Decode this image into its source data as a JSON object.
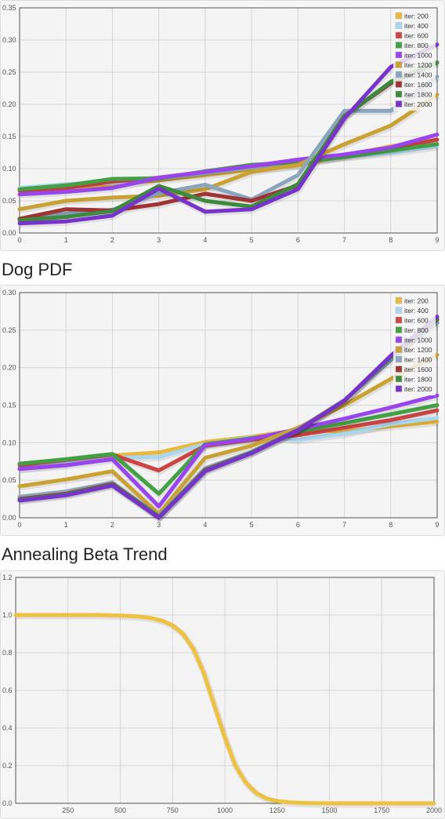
{
  "headings": {
    "dog_pdf": "Dog PDF",
    "annealing": "Annealing Beta Trend"
  },
  "chart_data": [
    {
      "type": "line",
      "title": "",
      "x": [
        0,
        1,
        2,
        3,
        4,
        5,
        6,
        7,
        8,
        9
      ],
      "ylim": [
        0,
        0.35
      ],
      "yticks": [
        0.0,
        0.05,
        0.1,
        0.15,
        0.2,
        0.25,
        0.3,
        0.35
      ],
      "grid": true,
      "legend": "top-right",
      "series": [
        {
          "name": "iter: 200",
          "color": "#e8b93c",
          "values": [
            0.065,
            0.07,
            0.075,
            0.082,
            0.09,
            0.098,
            0.105,
            0.12,
            0.135,
            0.145
          ]
        },
        {
          "name": "iter: 400",
          "color": "#a9d6f0",
          "values": [
            0.07,
            0.076,
            0.078,
            0.085,
            0.093,
            0.102,
            0.11,
            0.118,
            0.125,
            0.135
          ]
        },
        {
          "name": "iter: 600",
          "color": "#cc4444",
          "values": [
            0.066,
            0.07,
            0.08,
            0.086,
            0.095,
            0.104,
            0.112,
            0.12,
            0.13,
            0.145
          ]
        },
        {
          "name": "iter: 800",
          "color": "#44a044",
          "values": [
            0.068,
            0.074,
            0.084,
            0.085,
            0.096,
            0.106,
            0.11,
            0.118,
            0.128,
            0.138
          ]
        },
        {
          "name": "iter: 1000",
          "color": "#9944ee",
          "values": [
            0.06,
            0.064,
            0.07,
            0.086,
            0.095,
            0.104,
            0.114,
            0.122,
            0.133,
            0.153
          ]
        },
        {
          "name": "iter: 1200",
          "color": "#c9a233",
          "values": [
            0.037,
            0.05,
            0.055,
            0.058,
            0.068,
            0.095,
            0.106,
            0.138,
            0.167,
            0.215
          ]
        },
        {
          "name": "iter: 1400",
          "color": "#8aa6bf",
          "values": [
            0.022,
            0.03,
            0.036,
            0.062,
            0.075,
            0.052,
            0.09,
            0.19,
            0.19,
            0.243
          ]
        },
        {
          "name": "iter: 1600",
          "color": "#a03434",
          "values": [
            0.022,
            0.037,
            0.035,
            0.045,
            0.061,
            0.05,
            0.074,
            0.182,
            0.233,
            0.265
          ]
        },
        {
          "name": "iter: 1800",
          "color": "#3d8a3d",
          "values": [
            0.02,
            0.025,
            0.034,
            0.073,
            0.05,
            0.041,
            0.076,
            0.181,
            0.235,
            0.265
          ]
        },
        {
          "name": "iter: 2000",
          "color": "#7733cc",
          "values": [
            0.015,
            0.018,
            0.027,
            0.069,
            0.033,
            0.037,
            0.068,
            0.178,
            0.258,
            0.293
          ]
        }
      ]
    },
    {
      "type": "line",
      "title": "Dog PDF",
      "x": [
        0,
        1,
        2,
        3,
        4,
        5,
        6,
        7,
        8,
        9
      ],
      "ylim": [
        0,
        0.3
      ],
      "yticks": [
        0.0,
        0.05,
        0.1,
        0.15,
        0.2,
        0.25,
        0.3
      ],
      "grid": true,
      "legend": "top-right",
      "series": [
        {
          "name": "iter: 200",
          "color": "#e8b93c",
          "values": [
            0.065,
            0.072,
            0.083,
            0.087,
            0.101,
            0.108,
            0.117,
            0.115,
            0.122,
            0.128
          ]
        },
        {
          "name": "iter: 400",
          "color": "#a9d6f0",
          "values": [
            0.068,
            0.075,
            0.08,
            0.081,
            0.098,
            0.107,
            0.104,
            0.112,
            0.125,
            0.133
          ]
        },
        {
          "name": "iter: 600",
          "color": "#cc4444",
          "values": [
            0.07,
            0.077,
            0.084,
            0.063,
            0.096,
            0.104,
            0.11,
            0.12,
            0.13,
            0.143
          ]
        },
        {
          "name": "iter: 800",
          "color": "#44a044",
          "values": [
            0.072,
            0.078,
            0.085,
            0.032,
            0.098,
            0.106,
            0.115,
            0.126,
            0.138,
            0.15
          ]
        },
        {
          "name": "iter: 1000",
          "color": "#9944ee",
          "values": [
            0.065,
            0.07,
            0.078,
            0.015,
            0.097,
            0.105,
            0.118,
            0.132,
            0.147,
            0.163
          ]
        },
        {
          "name": "iter: 1200",
          "color": "#c9a233",
          "values": [
            0.042,
            0.051,
            0.062,
            0.005,
            0.08,
            0.096,
            0.12,
            0.15,
            0.185,
            0.217
          ]
        },
        {
          "name": "iter: 1400",
          "color": "#8aa6bf",
          "values": [
            0.028,
            0.035,
            0.047,
            0.002,
            0.066,
            0.088,
            0.118,
            0.157,
            0.21,
            0.26
          ]
        },
        {
          "name": "iter: 1600",
          "color": "#a03434",
          "values": [
            0.025,
            0.032,
            0.045,
            0.001,
            0.064,
            0.087,
            0.117,
            0.156,
            0.215,
            0.264
          ]
        },
        {
          "name": "iter: 1800",
          "color": "#3d8a3d",
          "values": [
            0.024,
            0.031,
            0.044,
            0.001,
            0.063,
            0.087,
            0.116,
            0.156,
            0.215,
            0.265
          ]
        },
        {
          "name": "iter: 2000",
          "color": "#7733cc",
          "values": [
            0.023,
            0.03,
            0.043,
            0.0,
            0.062,
            0.086,
            0.116,
            0.156,
            0.216,
            0.268
          ]
        }
      ]
    },
    {
      "type": "line",
      "title": "Annealing Beta Trend",
      "x": [
        0,
        100,
        200,
        300,
        400,
        500,
        550,
        600,
        650,
        700,
        750,
        800,
        850,
        900,
        950,
        1000,
        1050,
        1100,
        1150,
        1200,
        1250,
        1300,
        1350,
        1400,
        1450,
        1500,
        1600,
        1700,
        1800,
        1900,
        2000
      ],
      "xlim": [
        0,
        2000
      ],
      "xticks": [
        250,
        500,
        750,
        1000,
        1250,
        1500,
        1750,
        2000
      ],
      "ylim": [
        0,
        1.2
      ],
      "yticks": [
        0.0,
        0.2,
        0.4,
        0.6,
        0.8,
        1.0,
        1.2
      ],
      "grid": true,
      "series": [
        {
          "color": "#eec140",
          "values": [
            1.0,
            1.0,
            1.0,
            1.0,
            1.0,
            0.997,
            0.995,
            0.991,
            0.983,
            0.97,
            0.945,
            0.9,
            0.82,
            0.69,
            0.52,
            0.35,
            0.2,
            0.11,
            0.055,
            0.025,
            0.012,
            0.006,
            0.003,
            0.001,
            0.0005,
            0.0,
            0.0,
            0.0,
            0.0,
            0.0,
            0.0
          ]
        }
      ]
    }
  ]
}
